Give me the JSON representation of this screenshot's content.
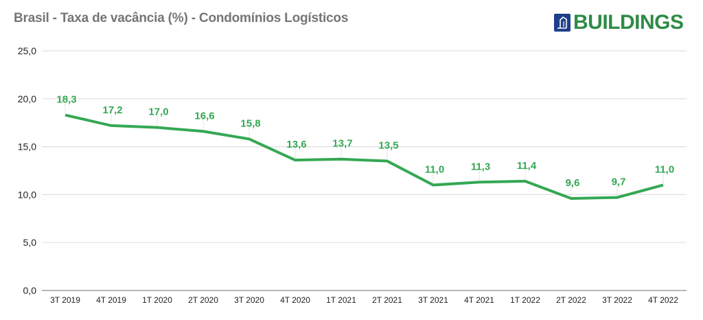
{
  "header": {
    "title": "Brasil - Taxa de vacância (%) - Condomínios Logísticos",
    "logo_text": "BUILDINGS",
    "logo_icon": "building-icon"
  },
  "colors": {
    "line": "#34a853",
    "title": "#757575",
    "logo_text": "#2e8b45",
    "logo_icon_bg": "#1f3f8a",
    "grid": "#e0e0e0",
    "axis": "#9e9e9e"
  },
  "chart_data": {
    "type": "line",
    "title": "Brasil - Taxa de vacância (%) - Condomínios Logísticos",
    "xlabel": "",
    "ylabel": "",
    "categories": [
      "3T 2019",
      "4T 2019",
      "1T 2020",
      "2T 2020",
      "3T 2020",
      "4T 2020",
      "1T 2021",
      "2T 2021",
      "3T 2021",
      "4T 2021",
      "1T 2022",
      "2T 2022",
      "3T 2022",
      "4T 2022"
    ],
    "series": [
      {
        "name": "Taxa de vacância (%)",
        "values": [
          18.3,
          17.2,
          17.0,
          16.6,
          15.8,
          13.6,
          13.7,
          13.5,
          11.0,
          11.3,
          11.4,
          9.6,
          9.7,
          11.0
        ],
        "labels": [
          "18,3",
          "17,2",
          "17,0",
          "16,6",
          "15,8",
          "13,6",
          "13,7",
          "13,5",
          "11,0",
          "11,3",
          "11,4",
          "9,6",
          "9,7",
          "11,0"
        ]
      }
    ],
    "ylim": [
      0,
      25
    ],
    "yticks": [
      0,
      5,
      10,
      15,
      20,
      25
    ],
    "ytick_labels": [
      "0,0",
      "5,0",
      "10,0",
      "15,0",
      "20,0",
      "25,0"
    ],
    "grid": true,
    "legend": "none",
    "data_labels": true
  }
}
